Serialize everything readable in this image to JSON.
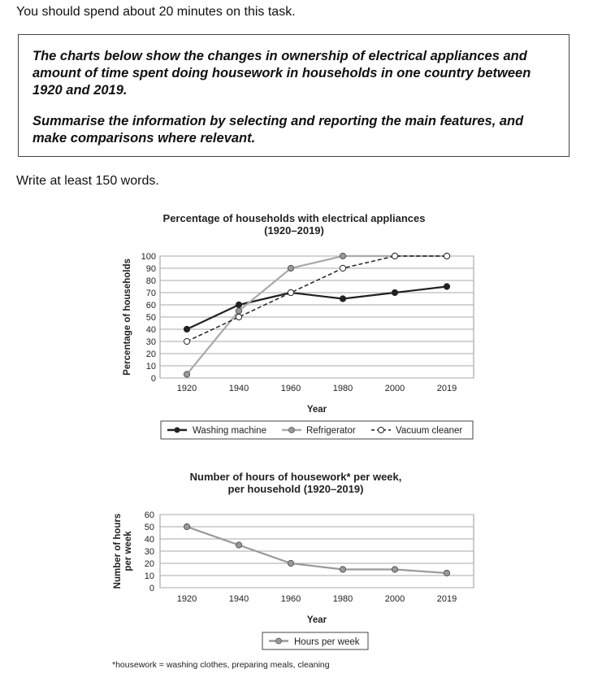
{
  "intro": "You should spend about 20 minutes on this task.",
  "task": {
    "line1": "The charts below show the changes in ownership of electrical appliances and amount of time spent doing housework in households in one country between 1920 and 2019.",
    "line2": "Summarise the information by selecting and reporting the main features, and make comparisons where relevant."
  },
  "words": "Write at least 150 words.",
  "footnote": "*housework = washing clothes, preparing meals, cleaning",
  "colors": {
    "washing": "#222222",
    "refrigerator": "#aaaaaa",
    "vacuum": "#222222",
    "hours": "#999999",
    "grid": "#aaaaaa"
  },
  "chart_data": [
    {
      "type": "line",
      "title": "Percentage of households with electrical appliances",
      "subtitle": "(1920–2019)",
      "xlabel": "Year",
      "ylabel": "Percentage of households",
      "categories": [
        "1920",
        "1940",
        "1960",
        "1980",
        "2000",
        "2019"
      ],
      "ylim": [
        0,
        100
      ],
      "yticks": [
        0,
        10,
        20,
        30,
        40,
        50,
        60,
        70,
        80,
        90,
        100
      ],
      "grid": true,
      "legend_position": "bottom",
      "series": [
        {
          "name": "Washing machine",
          "values": [
            40,
            60,
            70,
            65,
            70,
            75
          ],
          "marker": "filled-dark",
          "line": "solid"
        },
        {
          "name": "Refrigerator",
          "values": [
            3,
            55,
            90,
            100,
            100,
            100
          ],
          "marker": "filled-grey",
          "line": "solid"
        },
        {
          "name": "Vacuum cleaner",
          "values": [
            30,
            50,
            70,
            90,
            100,
            100
          ],
          "marker": "hollow",
          "line": "dashed"
        }
      ]
    },
    {
      "type": "line",
      "title": "Number of hours of housework* per week,",
      "subtitle": "per household (1920–2019)",
      "xlabel": "Year",
      "ylabel": [
        "Number of hours",
        "per week"
      ],
      "categories": [
        "1920",
        "1940",
        "1960",
        "1980",
        "2000",
        "2019"
      ],
      "ylim": [
        0,
        60
      ],
      "yticks": [
        0,
        10,
        20,
        30,
        40,
        50,
        60
      ],
      "grid": true,
      "legend_position": "bottom",
      "series": [
        {
          "name": "Hours per week",
          "values": [
            50,
            35,
            20,
            15,
            15,
            12
          ],
          "marker": "filled-grey",
          "line": "solid"
        }
      ]
    }
  ]
}
